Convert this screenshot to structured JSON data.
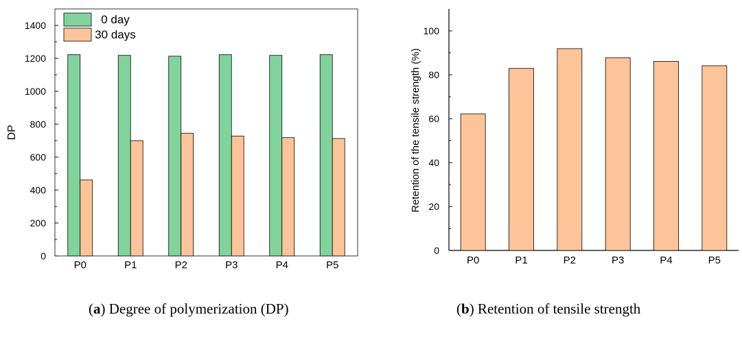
{
  "chart_data": [
    {
      "type": "bar",
      "categories": [
        "P0",
        "P1",
        "P2",
        "P3",
        "P4",
        "P5"
      ],
      "series": [
        {
          "name": "0 day",
          "values": [
            1222,
            1218,
            1213,
            1222,
            1218,
            1222
          ],
          "color": "#80d49b"
        },
        {
          "name": "30 days",
          "values": [
            462,
            700,
            745,
            728,
            718,
            713
          ],
          "color": "#fdc499"
        }
      ],
      "ylabel": "DP",
      "xlabel": "",
      "ylim": [
        0,
        1500
      ],
      "yticks": [
        0,
        200,
        400,
        600,
        800,
        1000,
        1200,
        1400
      ],
      "legend": "top-left",
      "grid": false
    },
    {
      "type": "bar",
      "categories": [
        "P0",
        "P1",
        "P2",
        "P3",
        "P4",
        "P5"
      ],
      "series": [
        {
          "values": [
            62.2,
            82.9,
            91.9,
            87.8,
            86.1,
            84.1
          ],
          "color": "#fdc499"
        }
      ],
      "ylabel": "Retention of the tensile strength (%)",
      "xlabel": "",
      "ylim": [
        0,
        110
      ],
      "yticks": [
        0,
        20,
        40,
        60,
        80,
        100
      ],
      "grid": false
    }
  ],
  "captions": {
    "a": {
      "letter": "a",
      "text": ") Degree of polymerization (DP)"
    },
    "b": {
      "letter": "b",
      "text": ") Retention of tensile strength"
    }
  }
}
